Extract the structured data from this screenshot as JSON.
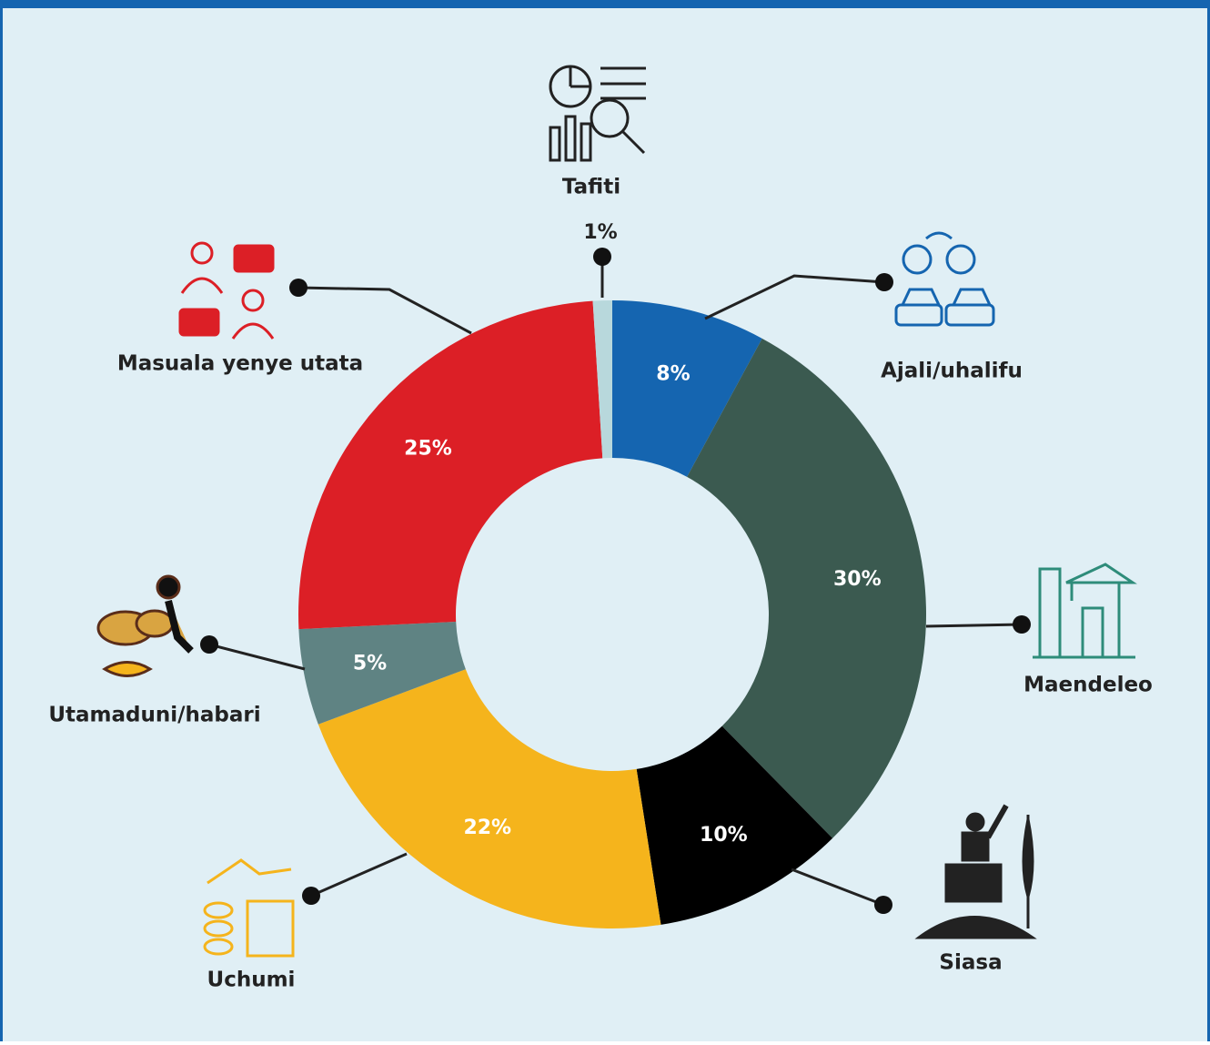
{
  "chart_data": {
    "type": "donut",
    "categories": [
      "Ajali/uhalifu",
      "Maendeleo",
      "Siasa",
      "Uchumi",
      "Utamaduni/habari",
      "Masuala yenye utata",
      "Tafiti"
    ],
    "values": [
      8,
      30,
      10,
      22,
      5,
      25,
      1
    ],
    "value_labels": [
      "8%",
      "30%",
      "10%",
      "22%",
      "5%",
      "25%",
      "1%"
    ],
    "colors": [
      "#1565b0",
      "#3b5a50",
      "#000000",
      "#f5b41c",
      "#5f8383",
      "#dc1f26",
      "#b8d8dc"
    ]
  }
}
